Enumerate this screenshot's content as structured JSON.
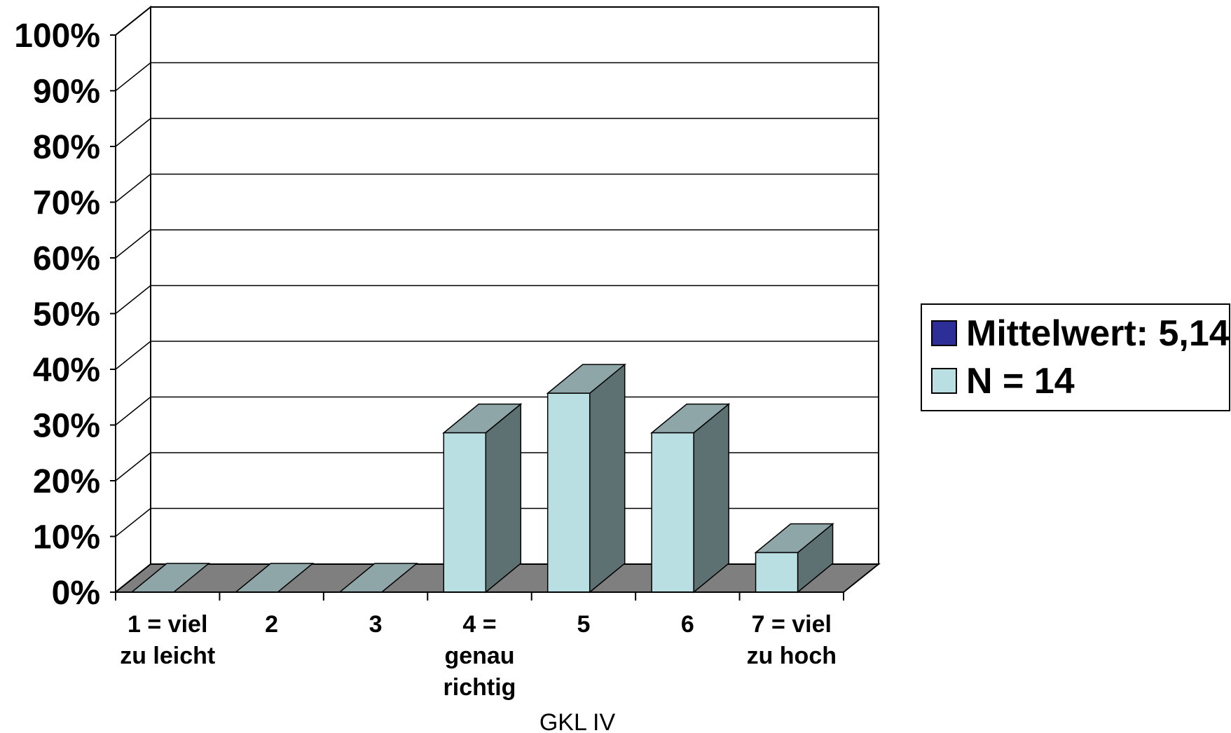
{
  "chart_data": {
    "type": "bar",
    "title": "",
    "xlabel": "GKL IV",
    "ylabel": "",
    "categories": [
      [
        "1 = viel",
        "zu leicht"
      ],
      [
        "2"
      ],
      [
        "3"
      ],
      [
        "4 =",
        "genau",
        "richtig"
      ],
      [
        "5"
      ],
      [
        "6"
      ],
      [
        "7 = viel",
        "zu hoch"
      ]
    ],
    "series": [
      {
        "name": "N = 14",
        "values": [
          0,
          0,
          0,
          28.6,
          35.7,
          28.6,
          7.1
        ],
        "color": "#b9dfe3"
      }
    ],
    "ylim": [
      0,
      100
    ],
    "yticks": [
      "0%",
      "10%",
      "20%",
      "30%",
      "40%",
      "50%",
      "60%",
      "70%",
      "80%",
      "90%",
      "100%"
    ],
    "grid": true,
    "three_d": true,
    "legend": {
      "placement": "right",
      "entries": [
        {
          "label": "Mittelwert: 5,14",
          "color": "#2e2e99"
        },
        {
          "label": "N = 14",
          "color": "#b9dfe3"
        }
      ]
    }
  }
}
